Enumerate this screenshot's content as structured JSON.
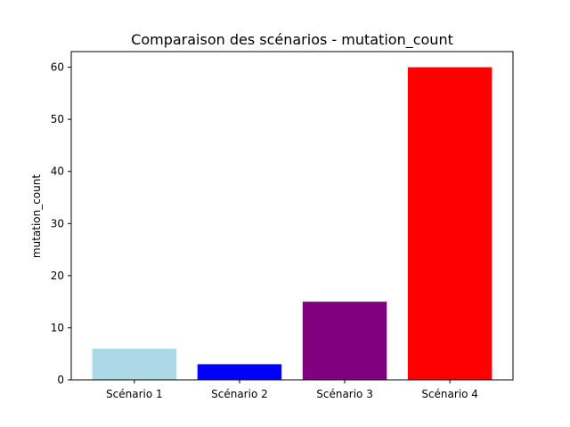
{
  "chart_data": {
    "type": "bar",
    "title": "Comparaison des scénarios - mutation_count",
    "xlabel": "",
    "ylabel": "mutation_count",
    "categories": [
      "Scénario 1",
      "Scénario 2",
      "Scénario 3",
      "Scénario 4"
    ],
    "values": [
      6,
      3,
      15,
      60
    ],
    "colors": [
      "#add8e6",
      "#0000ff",
      "#800080",
      "#ff0000"
    ],
    "ylim": [
      0,
      63
    ],
    "yticks": [
      0,
      10,
      20,
      30,
      40,
      50,
      60
    ],
    "grid": false,
    "legend": "none"
  }
}
